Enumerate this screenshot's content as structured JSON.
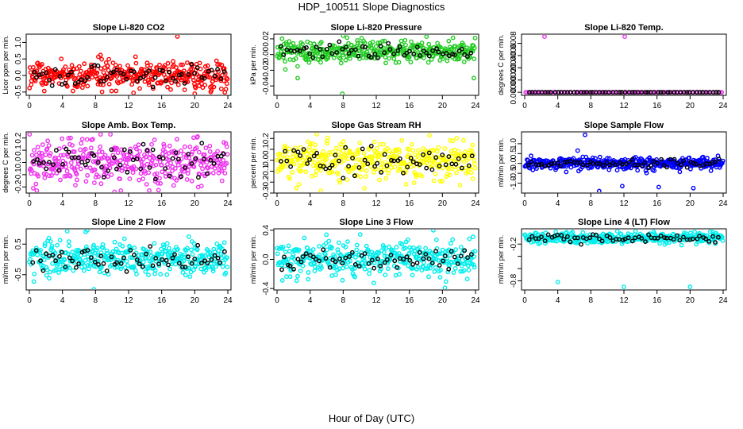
{
  "figure": {
    "title": "HDP_100511  Slope Diagnostics",
    "xlabel": "Hour of Day (UTC)"
  },
  "colors": {
    "overlay": "#000000",
    "red": "#ff0000",
    "green": "#22cc22",
    "magenta": "#ee33ee",
    "yellow": "#ffff00",
    "blue": "#0000ff",
    "cyan": "#00eeee"
  },
  "chart_data": [
    {
      "type": "scatter",
      "title": "Slope Li-820 CO2",
      "ylabel": "Licor ppm per min.",
      "color": "#ff0000",
      "xlim": [
        0,
        24
      ],
      "ylim": [
        -0.6,
        1.25
      ],
      "xticks": [
        0,
        4,
        8,
        12,
        16,
        20,
        24
      ],
      "yticks": [
        -0.5,
        0.0,
        0.5,
        1.0
      ],
      "ytick_labels": [
        "-0.5",
        "0.0",
        "0.5",
        "1.0"
      ],
      "n_points": 380,
      "base": 0.0,
      "spread": 0.22,
      "outliers": [
        {
          "x": 17.9,
          "y": 1.18
        },
        {
          "x": 20.0,
          "y": -0.55
        },
        {
          "x": 8.6,
          "y": 0.62
        }
      ]
    },
    {
      "type": "scatter",
      "title": "Slope Li-820 Pressure",
      "ylabel": "kPa per min.",
      "color": "#22cc22",
      "xlim": [
        0,
        24
      ],
      "ylim": [
        -0.052,
        0.026
      ],
      "xticks": [
        0,
        4,
        8,
        12,
        16,
        20,
        24
      ],
      "yticks": [
        -0.04,
        -0.02,
        0.0,
        0.02
      ],
      "ytick_labels": [
        "-0.04",
        "-0.02",
        "0.00",
        "0.02"
      ],
      "n_points": 360,
      "base": 0.004,
      "spread": 0.007,
      "outliers": [
        {
          "x": 7.9,
          "y": -0.05
        },
        {
          "x": 23.8,
          "y": -0.03
        },
        {
          "x": 2.5,
          "y": -0.03
        },
        {
          "x": 8.0,
          "y": 0.024
        }
      ]
    },
    {
      "type": "scatter",
      "title": "Slope Li-820 Temp.",
      "ylabel": "degrees C per min.",
      "color": "#ee33ee",
      "xlim": [
        0,
        24
      ],
      "ylim": [
        -5e-05,
        0.00095
      ],
      "xticks": [
        0,
        4,
        8,
        12,
        16,
        20,
        24
      ],
      "yticks": [
        0.0,
        0.0002,
        0.0004,
        0.0006,
        0.0008
      ],
      "ytick_labels": [
        "0.0000",
        "0.0002",
        "0.0004",
        "0.0006",
        "0.0008"
      ],
      "n_points": 90,
      "base": 0.0,
      "spread": 0.0,
      "outliers": [
        {
          "x": 2.4,
          "y": 0.00091
        },
        {
          "x": 12.1,
          "y": 0.00091
        }
      ]
    },
    {
      "type": "scatter",
      "title": "Slope Amb. Box Temp.",
      "ylabel": "degrees C per min.",
      "color": "#ee33ee",
      "xlim": [
        0,
        24
      ],
      "ylim": [
        -0.25,
        0.25
      ],
      "xticks": [
        0,
        4,
        8,
        12,
        16,
        20,
        24
      ],
      "yticks": [
        -0.2,
        -0.1,
        0.0,
        0.1,
        0.2
      ],
      "ytick_labels": [
        "-0.2",
        "-0.1",
        "0.0",
        "0.1",
        "0.2"
      ],
      "n_points": 380,
      "base": 0.0,
      "spread": 0.09,
      "outliers": [
        {
          "x": 10.3,
          "y": -0.24
        }
      ]
    },
    {
      "type": "scatter",
      "title": "Slope Gas Stream RH",
      "ylabel": "percent per min.",
      "color": "#ffff00",
      "xlim": [
        0,
        24
      ],
      "ylim": [
        -0.3,
        0.26
      ],
      "xticks": [
        0,
        4,
        8,
        12,
        16,
        20,
        24
      ],
      "yticks": [
        -0.3,
        -0.2,
        -0.1,
        0.0,
        0.1,
        0.2
      ],
      "ytick_labels": [
        "-0.3",
        "-0.2",
        "-0.1",
        "0.0",
        "0.1",
        "0.2"
      ],
      "n_points": 380,
      "base": 0.0,
      "spread": 0.09,
      "outliers": [
        {
          "x": 5.3,
          "y": -0.28
        },
        {
          "x": 4.8,
          "y": 0.24
        }
      ]
    },
    {
      "type": "scatter",
      "title": "Slope Sample Flow",
      "ylabel": "ml/min per min.",
      "color": "#0000ff",
      "xlim": [
        0,
        24
      ],
      "ylim": [
        -1.5,
        1.6
      ],
      "xticks": [
        0,
        4,
        8,
        12,
        16,
        20,
        24
      ],
      "yticks": [
        -1.0,
        -0.5,
        0.0,
        0.5,
        1.0
      ],
      "ytick_labels": [
        "-1.0",
        "-0.5",
        "0.0",
        "0.5",
        "1.0"
      ],
      "n_points": 380,
      "base": 0.0,
      "spread": 0.15,
      "outliers": [
        {
          "x": 7.3,
          "y": 1.45
        },
        {
          "x": 11.8,
          "y": -1.15
        },
        {
          "x": 16.2,
          "y": -1.2
        },
        {
          "x": 20.4,
          "y": -1.25
        },
        {
          "x": 9.0,
          "y": -1.4
        },
        {
          "x": 6.4,
          "y": 0.65
        }
      ]
    },
    {
      "type": "scatter",
      "title": "Slope Line 2 Flow",
      "ylabel": "ml/min per min.",
      "color": "#00eeee",
      "xlim": [
        0,
        24
      ],
      "ylim": [
        -1.0,
        1.0
      ],
      "xticks": [
        0,
        4,
        8,
        12,
        16,
        20,
        24
      ],
      "yticks": [
        -0.5,
        0.5
      ],
      "ytick_labels": [
        "-0.5",
        "0.5"
      ],
      "n_points": 380,
      "base": 0.0,
      "spread": 0.28,
      "outliers": [
        {
          "x": 7.0,
          "y": 0.95
        },
        {
          "x": 7.8,
          "y": -0.98
        },
        {
          "x": 6.8,
          "y": 0.9
        }
      ]
    },
    {
      "type": "scatter",
      "title": "Slope Line 3 Flow",
      "ylabel": "ml/min per min.",
      "color": "#00eeee",
      "xlim": [
        0,
        24
      ],
      "ylim": [
        -0.42,
        0.42
      ],
      "xticks": [
        0,
        4,
        8,
        12,
        16,
        20,
        24
      ],
      "yticks": [
        -0.4,
        0.0,
        0.4
      ],
      "ytick_labels": [
        "-0.4",
        "0.0",
        "0.4"
      ],
      "n_points": 380,
      "base": 0.0,
      "spread": 0.12,
      "outliers": [
        {
          "x": 18.9,
          "y": 0.4
        },
        {
          "x": 20.3,
          "y": -0.39
        }
      ]
    },
    {
      "type": "scatter",
      "title": "Slope Line 4 (LT) Flow",
      "ylabel": "ml/min per min.",
      "color": "#00eeee",
      "xlim": [
        0,
        24
      ],
      "ylim": [
        -0.95,
        0.05
      ],
      "xticks": [
        0,
        4,
        8,
        12,
        16,
        20,
        24
      ],
      "yticks": [
        -0.8,
        -0.6,
        -0.4,
        -0.2
      ],
      "ytick_labels": [
        "-0.8",
        "",
        "",
        "-0.2"
      ],
      "n_points": 380,
      "base": -0.1,
      "spread": 0.045,
      "outliers": [
        {
          "x": 4.0,
          "y": -0.82
        },
        {
          "x": 12.0,
          "y": -0.9
        },
        {
          "x": 20.0,
          "y": -0.9
        }
      ]
    }
  ]
}
